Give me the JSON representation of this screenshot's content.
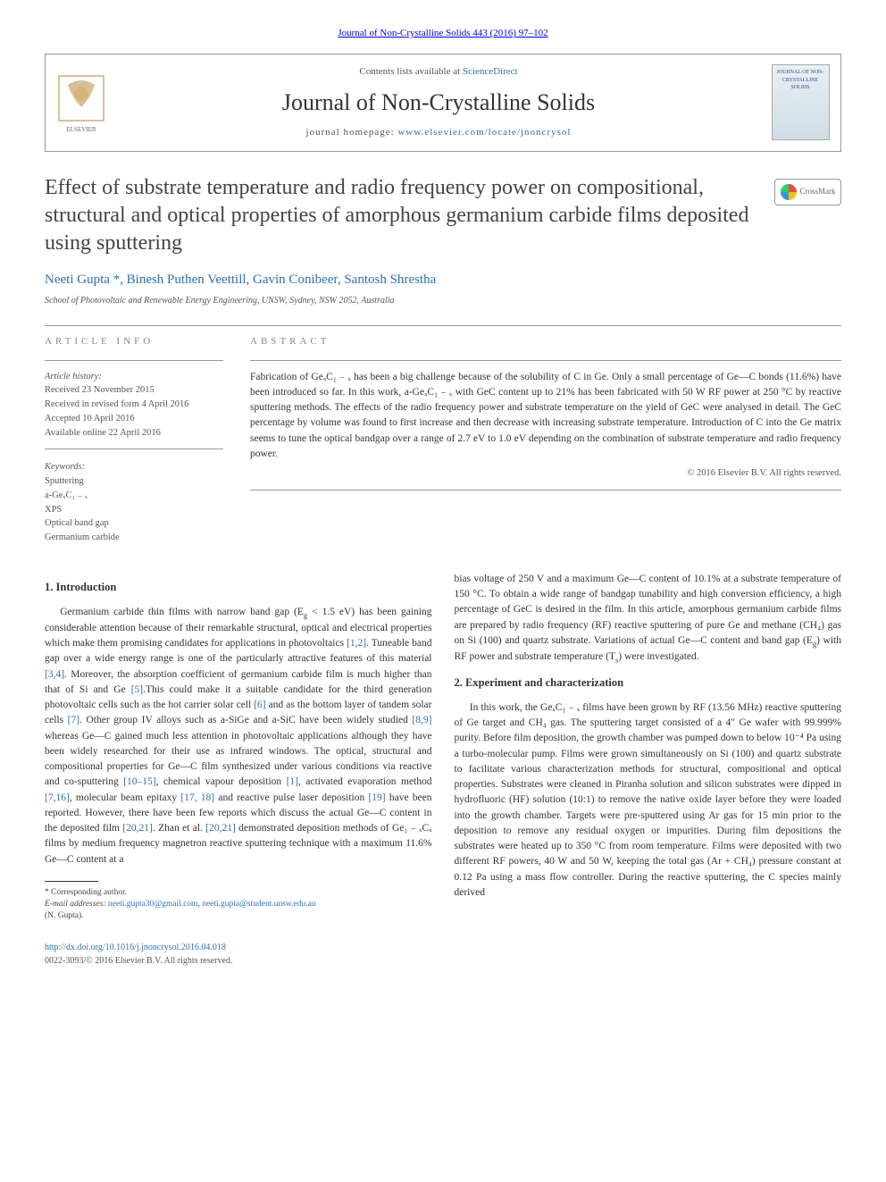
{
  "header": {
    "citation": "Journal of Non-Crystalline Solids 443 (2016) 97–102",
    "contents_prefix": "Contents lists available at ",
    "contents_link": "ScienceDirect",
    "journal_name": "Journal of Non-Crystalline Solids",
    "homepage_prefix": "journal homepage: ",
    "homepage_url": "www.elsevier.com/locate/jnoncrysol",
    "cover_label": "JOURNAL OF NON-CRYSTALLINE SOLIDS"
  },
  "crossmark": {
    "label": "CrossMark"
  },
  "title": "Effect of substrate temperature and radio frequency power on compositional, structural and optical properties of amorphous germanium carbide films deposited using sputtering",
  "authors_html": "Neeti Gupta *, Binesh Puthen Veettill, Gavin Conibeer, Santosh Shrestha",
  "affiliation": "School of Photovoltaic and Renewable Energy Engineering, UNSW, Sydney, NSW 2052, Australia",
  "meta": {
    "info_label": "article info",
    "abstract_label": "abstract",
    "history_heading": "Article history:",
    "history_lines": [
      "Received 23 November 2015",
      "Received in revised form 4 April 2016",
      "Accepted 10 April 2016",
      "Available online 22 April 2016"
    ],
    "keywords_heading": "Keywords:",
    "keywords": [
      "Sputtering",
      "a-GeₓC₁ ₋ ₓ",
      "XPS",
      "Optical band gap",
      "Germanium carbide"
    ]
  },
  "abstract_html": "Fabrication of GeₓC₁ ₋ ₓ has been a big challenge because of the solubility of C in Ge. Only a small percentage of Ge—C bonds (11.6%) have been introduced so far. In this work, a-GeₓC₁ ₋ ₓ with GeC content up to 21% has been fabricated with 50 W RF power at 250 °C by reactive sputtering methods. The effects of the radio frequency power and substrate temperature on the yield of GeC were analysed in detail. The GeC percentage by volume was found to first increase and then decrease with increasing substrate temperature. Introduction of C into the Ge matrix seems to tune the optical bandgap over a range of 2.7 eV to 1.0 eV depending on the combination of substrate temperature and radio frequency power.",
  "copyright_abstract": "© 2016 Elsevier B.V. All rights reserved.",
  "body": {
    "col1": {
      "h1": "1. Introduction",
      "p1_html": "Germanium carbide thin films with narrow band gap (E<sub>g</sub> &lt; 1.5 eV) has been gaining considerable attention because of their remarkable structural, optical and electrical properties which make them promising candidates for applications in photovoltaics <a href='#'>[1,2]</a>. Tuneable band gap over a wide energy range is one of the particularly attractive features of this material <a href='#'>[3,4]</a>. Moreover, the absorption coefficient of germanium carbide film is much higher than that of Si and Ge <a href='#'>[5]</a>.This could make it a suitable candidate for the third generation photovoltaic cells such as the hot carrier solar cell <a href='#'>[6]</a> and as the bottom layer of tandem solar cells <a href='#'>[7]</a>. Other group IV alloys such as a-SiGe and a-SiC have been widely studied <a href='#'>[8,9]</a> whereas Ge—C gained much less attention in photovoltaic applications although they have been widely researched for their use as infrared windows. The optical, structural and compositional properties for Ge—C film synthesized under various conditions via reactive and co-sputtering <a href='#'>[10–15]</a>, chemical vapour deposition <a href='#'>[1]</a>, activated evaporation method <a href='#'>[7,16]</a>, molecular beam epitaxy <a href='#'>[17, 18]</a> and reactive pulse laser deposition <a href='#'>[19]</a> have been reported. However, there have been few reports which discuss the actual Ge—C content in the deposited film <a href='#'>[20,21]</a>. Zhan et al. <a href='#'>[20,21]</a> demonstrated deposition methods of Ge₁ ₋ ₓCₓ films by medium frequency magnetron reactive sputtering technique with a maximum 11.6% Ge—C content at a"
    },
    "col2": {
      "p1_html": "bias voltage of 250 V and a maximum Ge—C content of 10.1% at a substrate temperature of 150 °C. To obtain a wide range of bandgap tunability and high conversion efficiency, a high percentage of GeC is desired in the film. In this article, amorphous germanium carbide films are prepared by radio frequency (RF) reactive sputtering of pure Ge and methane (CH₄) gas on Si (100) and quartz substrate. Variations of actual Ge—C content and band gap (E<sub>g</sub>) with RF power and substrate temperature (T<sub>s</sub>) were investigated.",
      "h2": "2. Experiment and characterization",
      "p2_html": "In this work, the GeₓC₁ ₋ ₓ films have been grown by RF (13.56 MHz) reactive sputtering of Ge target and CH₄ gas. The sputtering target consisted of a 4″ Ge wafer with 99.999% purity. Before film deposition, the growth chamber was pumped down to below 10⁻⁴ Pa using a turbo-molecular pump. Films were grown simultaneously on Si (100) and quartz substrate to facilitate various characterization methods for structural, compositional and optical properties. Substrates were cleaned in Piranha solution and silicon substrates were dipped in hydrofluoric (HF) solution (10:1) to remove the native oxide layer before they were loaded into the growth chamber. Targets were pre-sputtered using Ar gas for 15 min prior to the deposition to remove any residual oxygen or impurities. During film depositions the substrates were heated up to 350 °C from room temperature. Films were deposited with two different RF powers, 40 W and 50 W, keeping the total gas (Ar + CH₄) pressure constant at 0.12 Pa using a mass flow controller. During the reactive sputtering, the C species mainly derived"
    }
  },
  "footnotes": {
    "corresponding": "* Corresponding author.",
    "email_label": "E-mail addresses:",
    "emails_html": "<a href='#'>neeti.gupta30@gmail.com</a>, <a href='#'>neeti.gupta@student.unsw.edu.au</a>",
    "author_ref": "(N. Gupta)."
  },
  "footer": {
    "doi": "http://dx.doi.org/10.1016/j.jnoncrysol.2016.04.018",
    "issn_copy": "0022-3093/© 2016 Elsevier B.V. All rights reserved."
  },
  "colors": {
    "link": "#3070b0",
    "text": "#333333",
    "muted": "#555555",
    "rule": "#999999"
  }
}
